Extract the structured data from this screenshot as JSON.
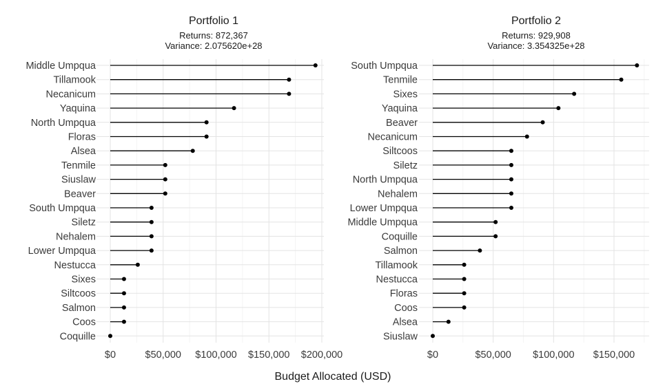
{
  "chart_data": [
    {
      "type": "lollipop",
      "title": "Portfolio 1",
      "subtitle_lines": [
        "Returns: 872,367",
        "Variance: 2.075620e+28"
      ],
      "xlim": [
        0,
        200000
      ],
      "xticks": [
        0,
        50000,
        100000,
        150000,
        200000
      ],
      "xtick_labels": [
        "$0",
        "$50,000",
        "$100,000",
        "$150,000",
        "$200,000"
      ],
      "categories": [
        "Middle Umpqua",
        "Tillamook",
        "Necanicum",
        "Yaquina",
        "North Umpqua",
        "Floras",
        "Alsea",
        "Tenmile",
        "Siuslaw",
        "Beaver",
        "South Umpqua",
        "Siletz",
        "Nehalem",
        "Lower Umpqua",
        "Nestucca",
        "Sixes",
        "Siltcoos",
        "Salmon",
        "Coos",
        "Coquille"
      ],
      "values": [
        194000,
        169000,
        169000,
        117000,
        91000,
        91000,
        78000,
        52000,
        52000,
        52000,
        39000,
        39000,
        39000,
        39000,
        26000,
        13000,
        13000,
        13000,
        13000,
        0
      ]
    },
    {
      "type": "lollipop",
      "title": "Portfolio 2",
      "subtitle_lines": [
        "Returns: 929,908",
        "Variance: 3.354325e+28"
      ],
      "xlim": [
        0,
        170000
      ],
      "xticks": [
        0,
        50000,
        100000,
        150000
      ],
      "xtick_labels": [
        "$0",
        "$50,000",
        "$100,000",
        "$150,000"
      ],
      "categories": [
        "South Umpqua",
        "Tenmile",
        "Sixes",
        "Yaquina",
        "Beaver",
        "Necanicum",
        "Siltcoos",
        "Siletz",
        "North Umpqua",
        "Nehalem",
        "Lower Umpqua",
        "Middle Umpqua",
        "Coquille",
        "Salmon",
        "Tillamook",
        "Nestucca",
        "Floras",
        "Coos",
        "Alsea",
        "Siuslaw"
      ],
      "values": [
        169000,
        156000,
        117000,
        104000,
        91000,
        78000,
        65000,
        65000,
        65000,
        65000,
        65000,
        52000,
        52000,
        39000,
        26000,
        26000,
        26000,
        26000,
        13000,
        0
      ]
    }
  ],
  "shared_xlabel": "Budget Allocated (USD)"
}
